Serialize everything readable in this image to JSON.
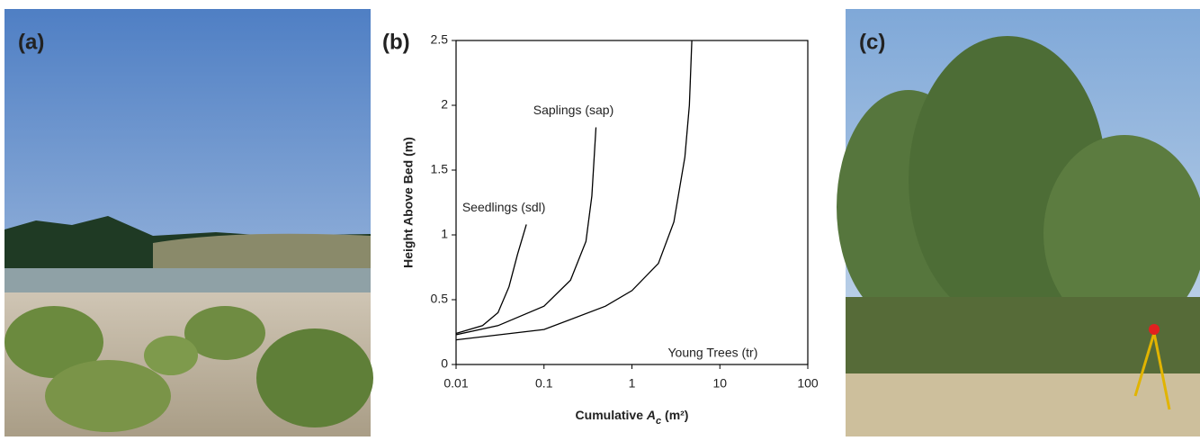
{
  "panel_labels": [
    "(a)",
    "(b)",
    "(c)"
  ],
  "chart_data": {
    "type": "line",
    "y_label": "Height Above Bed (m)",
    "x_label_parts": [
      "Cumulative ",
      "A",
      "c",
      " (m²)"
    ],
    "xscale": "log",
    "xlim": [
      0.01,
      100
    ],
    "xticks": [
      0.01,
      0.1,
      1,
      10,
      100
    ],
    "ylim": [
      0,
      2.5
    ],
    "yticks": [
      0,
      0.5,
      1,
      1.5,
      2,
      2.5
    ],
    "grid": false,
    "series": [
      {
        "name": "Seedlings (sdl)",
        "color": "#000000",
        "x": [
          0.01,
          0.02,
          0.03,
          0.04,
          0.05,
          0.063
        ],
        "values": [
          0.24,
          0.3,
          0.4,
          0.6,
          0.85,
          1.08
        ]
      },
      {
        "name": "Saplings (sap)",
        "color": "#000000",
        "x": [
          0.01,
          0.03,
          0.1,
          0.2,
          0.3,
          0.35,
          0.39
        ],
        "values": [
          0.23,
          0.3,
          0.45,
          0.65,
          0.95,
          1.3,
          1.83
        ]
      },
      {
        "name": "Young Trees (tr)",
        "color": "#000000",
        "x": [
          0.01,
          0.1,
          0.5,
          1,
          2,
          3,
          4,
          4.5,
          4.8
        ],
        "values": [
          0.19,
          0.27,
          0.45,
          0.57,
          0.78,
          1.1,
          1.6,
          2.0,
          2.5
        ]
      }
    ]
  }
}
